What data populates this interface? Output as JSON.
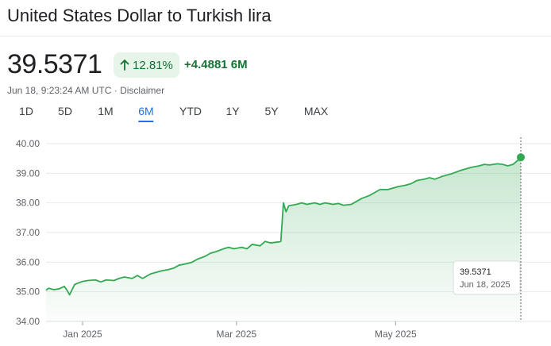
{
  "header": {
    "title": "United States Dollar to Turkish lira",
    "price": "39.5371",
    "change_pct": "12.81%",
    "change_abs": "+4.4881 6M",
    "meta": "Jun 18, 9:23:24 AM UTC · Disclaimer",
    "accent": "#137333"
  },
  "tabs": [
    {
      "label": "1D",
      "active": false
    },
    {
      "label": "5D",
      "active": false
    },
    {
      "label": "1M",
      "active": false
    },
    {
      "label": "6M",
      "active": true
    },
    {
      "label": "YTD",
      "active": false
    },
    {
      "label": "1Y",
      "active": false
    },
    {
      "label": "5Y",
      "active": false
    },
    {
      "label": "MAX",
      "active": false
    }
  ],
  "chart_data": {
    "type": "area",
    "x_start": "2024-12-18",
    "x_end": "2025-06-18",
    "ylim": [
      34.0,
      40.0
    ],
    "yticks": [
      "40.00",
      "39.00",
      "38.00",
      "37.00",
      "36.00",
      "35.00",
      "34.00"
    ],
    "xticks": [
      {
        "date": "2025-01-01",
        "label": "Jan 2025"
      },
      {
        "date": "2025-03-01",
        "label": "Mar 2025"
      },
      {
        "date": "2025-05-01",
        "label": "May 2025"
      }
    ],
    "grid": true,
    "line_color": "#34a853",
    "series": [
      {
        "points": [
          [
            "2024-12-18",
            35.05
          ],
          [
            "2024-12-19",
            35.12
          ],
          [
            "2024-12-21",
            35.07
          ],
          [
            "2024-12-23",
            35.1
          ],
          [
            "2024-12-25",
            35.18
          ],
          [
            "2024-12-26",
            35.06
          ],
          [
            "2024-12-27",
            34.9
          ],
          [
            "2024-12-29",
            35.25
          ],
          [
            "2025-01-01",
            35.35
          ],
          [
            "2025-01-03",
            35.38
          ],
          [
            "2025-01-06",
            35.4
          ],
          [
            "2025-01-08",
            35.33
          ],
          [
            "2025-01-10",
            35.4
          ],
          [
            "2025-01-13",
            35.38
          ],
          [
            "2025-01-15",
            35.45
          ],
          [
            "2025-01-17",
            35.5
          ],
          [
            "2025-01-20",
            35.45
          ],
          [
            "2025-01-22",
            35.55
          ],
          [
            "2025-01-24",
            35.45
          ],
          [
            "2025-01-27",
            35.6
          ],
          [
            "2025-01-29",
            35.65
          ],
          [
            "2025-01-31",
            35.7
          ],
          [
            "2025-02-03",
            35.75
          ],
          [
            "2025-02-05",
            35.8
          ],
          [
            "2025-02-07",
            35.9
          ],
          [
            "2025-02-10",
            35.95
          ],
          [
            "2025-02-12",
            36.0
          ],
          [
            "2025-02-14",
            36.1
          ],
          [
            "2025-02-17",
            36.2
          ],
          [
            "2025-02-19",
            36.3
          ],
          [
            "2025-02-21",
            36.35
          ],
          [
            "2025-02-24",
            36.45
          ],
          [
            "2025-02-26",
            36.5
          ],
          [
            "2025-02-28",
            36.45
          ],
          [
            "2025-03-03",
            36.5
          ],
          [
            "2025-03-05",
            36.45
          ],
          [
            "2025-03-07",
            36.6
          ],
          [
            "2025-03-10",
            36.55
          ],
          [
            "2025-03-12",
            36.7
          ],
          [
            "2025-03-14",
            36.65
          ],
          [
            "2025-03-17",
            36.68
          ],
          [
            "2025-03-18",
            36.7
          ],
          [
            "2025-03-19",
            38.0
          ],
          [
            "2025-03-20",
            37.7
          ],
          [
            "2025-03-21",
            37.9
          ],
          [
            "2025-03-24",
            37.95
          ],
          [
            "2025-03-26",
            38.0
          ],
          [
            "2025-03-28",
            37.95
          ],
          [
            "2025-03-31",
            38.0
          ],
          [
            "2025-04-02",
            37.95
          ],
          [
            "2025-04-04",
            38.0
          ],
          [
            "2025-04-07",
            37.95
          ],
          [
            "2025-04-09",
            37.98
          ],
          [
            "2025-04-11",
            37.92
          ],
          [
            "2025-04-14",
            37.95
          ],
          [
            "2025-04-16",
            38.05
          ],
          [
            "2025-04-18",
            38.15
          ],
          [
            "2025-04-21",
            38.25
          ],
          [
            "2025-04-23",
            38.35
          ],
          [
            "2025-04-25",
            38.45
          ],
          [
            "2025-04-28",
            38.45
          ],
          [
            "2025-04-30",
            38.5
          ],
          [
            "2025-05-02",
            38.55
          ],
          [
            "2025-05-05",
            38.6
          ],
          [
            "2025-05-07",
            38.65
          ],
          [
            "2025-05-09",
            38.75
          ],
          [
            "2025-05-12",
            38.8
          ],
          [
            "2025-05-14",
            38.85
          ],
          [
            "2025-05-16",
            38.8
          ],
          [
            "2025-05-19",
            38.9
          ],
          [
            "2025-05-21",
            38.95
          ],
          [
            "2025-05-23",
            39.0
          ],
          [
            "2025-05-26",
            39.1
          ],
          [
            "2025-05-28",
            39.15
          ],
          [
            "2025-05-30",
            39.2
          ],
          [
            "2025-06-02",
            39.25
          ],
          [
            "2025-06-04",
            39.3
          ],
          [
            "2025-06-06",
            39.28
          ],
          [
            "2025-06-09",
            39.32
          ],
          [
            "2025-06-11",
            39.3
          ],
          [
            "2025-06-13",
            39.25
          ],
          [
            "2025-06-15",
            39.3
          ],
          [
            "2025-06-17",
            39.45
          ],
          [
            "2025-06-18",
            39.5371
          ]
        ]
      }
    ],
    "tooltip": {
      "value": "39.5371",
      "date": "Jun 18, 2025"
    }
  }
}
